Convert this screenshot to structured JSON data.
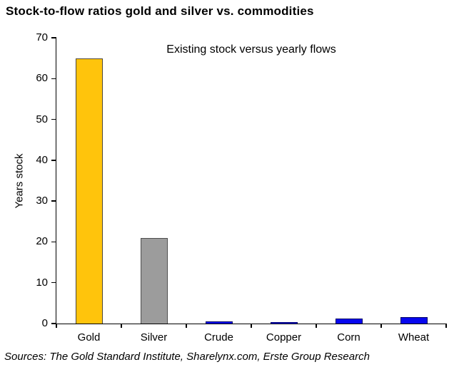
{
  "page_title": "Stock-to-flow ratios gold and silver vs. commodities",
  "chart_data": {
    "type": "bar",
    "title": "Stock-to-flow ratios gold and silver vs. commodities",
    "subtitle": "Existing stock versus yearly flows",
    "categories": [
      "Gold",
      "Silver",
      "Crude",
      "Copper",
      "Corn",
      "Wheat"
    ],
    "values": [
      65,
      21,
      0.5,
      0.3,
      1.3,
      1.6
    ],
    "bar_fill_colors": [
      "#FFC40C",
      "#9C9C9C",
      "#0707EE",
      "#0707EE",
      "#0707EE",
      "#0707EE"
    ],
    "bar_border_colors": [
      "#4d4738",
      "#4d4d4d",
      "#000066",
      "#000066",
      "#000066",
      "#000066"
    ],
    "xlabel": "",
    "ylabel": "Years stock",
    "ylim": [
      0,
      70
    ],
    "yticks": [
      0,
      10,
      20,
      30,
      40,
      50,
      60,
      70
    ],
    "grid": false,
    "legend_position": "none",
    "source": "Sources: The Gold Standard Institute, Sharelynx.com, Erste Group Research"
  }
}
